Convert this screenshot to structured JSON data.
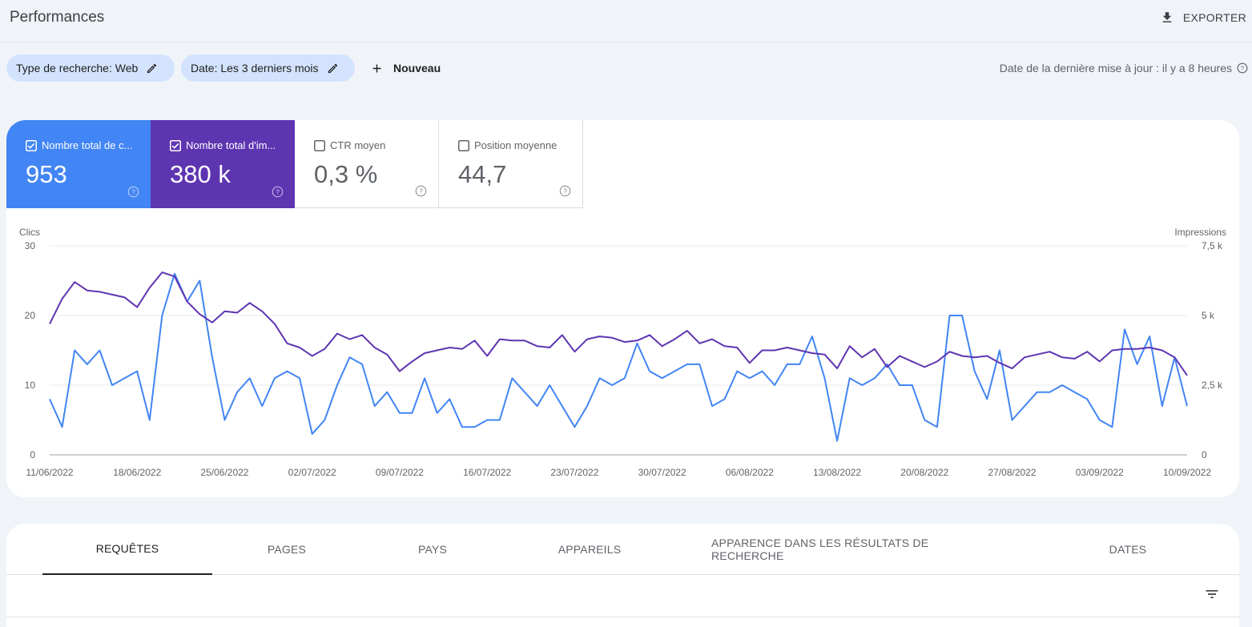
{
  "header": {
    "title": "Performances",
    "export_label": "EXPORTER"
  },
  "filters": {
    "chips": [
      {
        "label": "Type de recherche: Web"
      },
      {
        "label": "Date: Les 3 derniers mois"
      }
    ],
    "new_label": "Nouveau",
    "updated_text": "Date de la dernière mise à jour : il y a 8 heures"
  },
  "metrics": [
    {
      "label": "Nombre total de c...",
      "value": "953",
      "checked": true,
      "color": "#4285f4"
    },
    {
      "label": "Nombre total d'im...",
      "value": "380 k",
      "checked": true,
      "color": "#5e35b1"
    },
    {
      "label": "CTR moyen",
      "value": "0,3 %",
      "checked": false
    },
    {
      "label": "Position moyenne",
      "value": "44,7",
      "checked": false
    }
  ],
  "chart_data": {
    "type": "line",
    "ylabel": "Clics",
    "y2label": "Impressions",
    "ylim": [
      0,
      30
    ],
    "y2lim": [
      0,
      7500
    ],
    "yticks": [
      "0",
      "10",
      "20",
      "30"
    ],
    "y2ticks": [
      "0",
      "2,5 k",
      "5 k",
      "7,5 k"
    ],
    "xticks": [
      "11/06/2022",
      "18/06/2022",
      "25/06/2022",
      "02/07/2022",
      "09/07/2022",
      "16/07/2022",
      "23/07/2022",
      "30/07/2022",
      "06/08/2022",
      "13/08/2022",
      "20/08/2022",
      "27/08/2022",
      "03/09/2022",
      "10/09/2022"
    ],
    "grid": true,
    "series": [
      {
        "name": "Nombre total de clics",
        "axis": "left",
        "color": "#4285f4",
        "values": [
          8,
          4,
          15,
          13,
          15,
          10,
          11,
          12,
          5,
          20,
          26,
          22,
          25,
          14,
          5,
          9,
          11,
          7,
          11,
          12,
          11,
          3,
          5,
          10,
          14,
          13,
          7,
          9,
          6,
          6,
          11,
          6,
          8,
          4,
          4,
          5,
          5,
          11,
          9,
          7,
          10,
          7,
          4,
          7,
          11,
          10,
          11,
          16,
          12,
          11,
          12,
          13,
          13,
          7,
          8,
          12,
          11,
          12,
          10,
          13,
          13,
          17,
          11,
          2,
          11,
          10,
          11,
          13,
          10,
          10,
          5,
          4,
          20,
          20,
          12,
          8,
          15,
          5,
          7,
          9,
          9,
          10,
          9,
          8,
          5,
          4,
          18,
          13,
          17,
          7,
          14,
          7
        ]
      },
      {
        "name": "Nombre total d'impressions",
        "axis": "right",
        "color": "#5e35b1",
        "values": [
          4700,
          5600,
          6200,
          5900,
          5850,
          5750,
          5650,
          5300,
          6000,
          6550,
          6400,
          5500,
          5050,
          4750,
          5150,
          5100,
          5450,
          5150,
          4700,
          4000,
          3850,
          3550,
          3800,
          4350,
          4150,
          4300,
          3850,
          3600,
          3000,
          3350,
          3650,
          3750,
          3850,
          3800,
          4100,
          3550,
          4150,
          4100,
          4100,
          3900,
          3850,
          4300,
          3700,
          4150,
          4250,
          4200,
          4050,
          4100,
          4300,
          3900,
          4150,
          4450,
          4000,
          4150,
          3900,
          3850,
          3300,
          3750,
          3750,
          3850,
          3750,
          3650,
          3600,
          3100,
          3900,
          3500,
          3800,
          3150,
          3550,
          3350,
          3150,
          3350,
          3700,
          3550,
          3500,
          3550,
          3300,
          3100,
          3500,
          3600,
          3700,
          3500,
          3450,
          3700,
          3350,
          3750,
          3800,
          3800,
          3850,
          3750,
          3500,
          2850
        ]
      }
    ]
  },
  "tabs": [
    {
      "label": "REQUÊTES",
      "active": true
    },
    {
      "label": "PAGES"
    },
    {
      "label": "PAYS"
    },
    {
      "label": "APPAREILS"
    },
    {
      "label": "APPARENCE DANS LES RÉSULTATS DE RECHERCHE"
    },
    {
      "label": "DATES"
    }
  ],
  "icons": {
    "export": "download-icon",
    "edit": "pencil-icon",
    "add": "plus-icon",
    "help": "help-circle-icon",
    "filter": "filter-list-icon"
  }
}
